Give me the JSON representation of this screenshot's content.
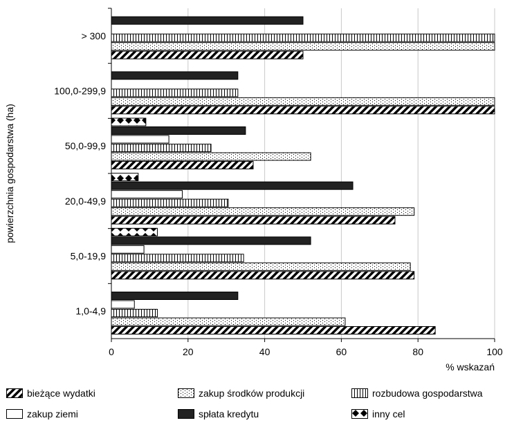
{
  "chart_data": {
    "type": "bar",
    "orientation": "horizontal",
    "ylabel": "powierzchnia gospodarstwa (ha)",
    "xlabel": "% wskazań",
    "xlim": [
      0,
      100
    ],
    "x_ticks": [
      0,
      20,
      40,
      60,
      80,
      100
    ],
    "grid": "vertical",
    "legend_position": "bottom",
    "categories": [
      "> 300",
      "100,0-299,9",
      "50,0-99,9",
      "20,0-49,9",
      "5,0-19,9",
      "1,0-4,9"
    ],
    "series": [
      {
        "name": "bieżące wydatki",
        "pattern": "diagonal",
        "color": "#000000",
        "values": [
          50,
          100,
          37,
          74,
          79,
          84.5
        ]
      },
      {
        "name": "zakup środków produkcji",
        "pattern": "dots",
        "color": "#000000",
        "values": [
          100,
          100,
          52,
          79,
          78,
          61
        ]
      },
      {
        "name": "rozbudowa gospodarstwa",
        "pattern": "vertical",
        "color": "#000000",
        "values": [
          100,
          33,
          26,
          30.5,
          34.5,
          12
        ]
      },
      {
        "name": "zakup ziemi",
        "pattern": "empty",
        "color": "#000000",
        "values": [
          0,
          0,
          15,
          18.5,
          8.5,
          6
        ]
      },
      {
        "name": "spłata kredytu",
        "pattern": "solid",
        "color": "#000000",
        "values": [
          50,
          33,
          35,
          63,
          52,
          33
        ]
      },
      {
        "name": "inny cel",
        "pattern": "diamonds",
        "color": "#000000",
        "values": [
          0,
          0,
          9,
          7,
          12,
          0
        ]
      }
    ]
  }
}
